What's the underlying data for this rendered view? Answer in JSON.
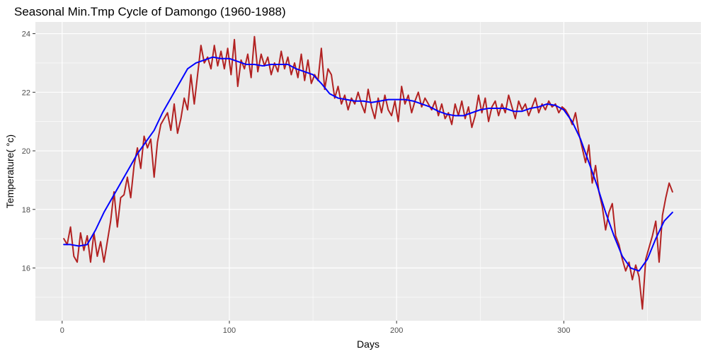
{
  "chart_data": {
    "type": "line",
    "title": "Seasonal Min.Tmp Cycle of Damongo (1960-1988)",
    "xlabel": "Days",
    "ylabel": "Temperature( °c)",
    "xlim": [
      -16,
      382
    ],
    "ylim": [
      14.2,
      24.4
    ],
    "x_ticks": [
      0,
      100,
      200,
      300
    ],
    "y_ticks": [
      16,
      18,
      20,
      22,
      24
    ],
    "grid": true,
    "legend": "none",
    "colors": {
      "panel": "#ebebeb",
      "grid": "#ffffff",
      "raw": "#b22222",
      "smooth": "#0000ff"
    },
    "series": [
      {
        "color": "#b22222",
        "x": [
          1,
          3,
          5,
          7,
          9,
          11,
          13,
          15,
          17,
          19,
          21,
          23,
          25,
          27,
          29,
          31,
          33,
          35,
          37,
          39,
          41,
          43,
          45,
          47,
          49,
          51,
          53,
          55,
          57,
          59,
          61,
          63,
          65,
          67,
          69,
          71,
          73,
          75,
          77,
          79,
          81,
          83,
          85,
          87,
          89,
          91,
          93,
          95,
          97,
          99,
          101,
          103,
          105,
          107,
          109,
          111,
          113,
          115,
          117,
          119,
          121,
          123,
          125,
          127,
          129,
          131,
          133,
          135,
          137,
          139,
          141,
          143,
          145,
          147,
          149,
          151,
          153,
          155,
          157,
          159,
          161,
          163,
          165,
          167,
          169,
          171,
          173,
          175,
          177,
          179,
          181,
          183,
          185,
          187,
          189,
          191,
          193,
          195,
          197,
          199,
          201,
          203,
          205,
          207,
          209,
          211,
          213,
          215,
          217,
          219,
          221,
          223,
          225,
          227,
          229,
          231,
          233,
          235,
          237,
          239,
          241,
          243,
          245,
          247,
          249,
          251,
          253,
          255,
          257,
          259,
          261,
          263,
          265,
          267,
          269,
          271,
          273,
          275,
          277,
          279,
          281,
          283,
          285,
          287,
          289,
          291,
          293,
          295,
          297,
          299,
          301,
          303,
          305,
          307,
          309,
          311,
          313,
          315,
          317,
          319,
          321,
          323,
          325,
          327,
          329,
          331,
          333,
          335,
          337,
          339,
          341,
          343,
          345,
          347,
          349,
          351,
          353,
          355,
          357,
          359,
          361,
          363,
          365
        ],
        "y": [
          17.0,
          16.8,
          17.4,
          16.4,
          16.2,
          17.2,
          16.6,
          17.1,
          16.2,
          17.2,
          16.4,
          16.9,
          16.2,
          16.9,
          17.6,
          18.6,
          17.4,
          18.4,
          18.5,
          19.1,
          18.4,
          19.5,
          20.1,
          19.4,
          20.5,
          20.1,
          20.4,
          19.1,
          20.3,
          20.9,
          21.1,
          21.3,
          20.7,
          21.6,
          20.6,
          21.1,
          21.8,
          21.4,
          22.6,
          21.6,
          22.6,
          23.6,
          23.0,
          23.2,
          22.8,
          23.6,
          22.9,
          23.4,
          22.8,
          23.5,
          22.6,
          23.8,
          22.2,
          23.1,
          22.8,
          23.3,
          22.5,
          23.9,
          22.7,
          23.3,
          22.9,
          23.2,
          22.6,
          23.0,
          22.7,
          23.4,
          22.8,
          23.2,
          22.6,
          23.0,
          22.5,
          23.3,
          22.4,
          23.1,
          22.3,
          22.6,
          22.4,
          23.5,
          22.1,
          22.8,
          22.6,
          21.8,
          22.2,
          21.6,
          21.9,
          21.4,
          21.8,
          21.6,
          22.0,
          21.6,
          21.3,
          22.1,
          21.5,
          21.1,
          21.8,
          21.3,
          21.9,
          21.4,
          21.2,
          21.7,
          21.0,
          22.2,
          21.6,
          21.9,
          21.3,
          21.7,
          22.0,
          21.5,
          21.8,
          21.6,
          21.4,
          21.7,
          21.2,
          21.6,
          21.1,
          21.3,
          20.9,
          21.6,
          21.2,
          21.7,
          21.1,
          21.5,
          20.8,
          21.2,
          21.9,
          21.3,
          21.8,
          21.0,
          21.5,
          21.7,
          21.2,
          21.6,
          21.3,
          21.9,
          21.5,
          21.1,
          21.7,
          21.4,
          21.6,
          21.2,
          21.5,
          21.8,
          21.3,
          21.6,
          21.4,
          21.7,
          21.5,
          21.6,
          21.3,
          21.5,
          21.4,
          21.2,
          20.9,
          21.3,
          20.6,
          20.1,
          19.6,
          20.2,
          18.9,
          19.5,
          18.6,
          18.1,
          17.3,
          17.9,
          18.2,
          17.1,
          16.8,
          16.3,
          15.9,
          16.2,
          15.6,
          16.1,
          15.7,
          14.6,
          16.3,
          16.7,
          17.1,
          17.6,
          16.2,
          17.8,
          18.4,
          18.9,
          18.6
        ]
      },
      {
        "color": "#0000ff",
        "x": [
          1,
          5,
          10,
          15,
          20,
          25,
          30,
          35,
          40,
          45,
          50,
          55,
          60,
          65,
          70,
          75,
          80,
          85,
          90,
          95,
          100,
          105,
          110,
          115,
          120,
          125,
          130,
          135,
          140,
          145,
          150,
          155,
          160,
          165,
          170,
          175,
          180,
          185,
          190,
          195,
          200,
          205,
          210,
          215,
          220,
          225,
          230,
          235,
          240,
          245,
          250,
          255,
          260,
          265,
          270,
          275,
          280,
          285,
          290,
          295,
          300,
          305,
          310,
          315,
          320,
          325,
          330,
          335,
          340,
          345,
          350,
          355,
          360,
          365
        ],
        "y": [
          16.8,
          16.8,
          16.75,
          16.8,
          17.3,
          17.9,
          18.4,
          18.9,
          19.4,
          19.9,
          20.3,
          20.7,
          21.3,
          21.8,
          22.3,
          22.8,
          23.0,
          23.1,
          23.2,
          23.15,
          23.15,
          23.05,
          22.95,
          22.95,
          22.9,
          22.95,
          22.95,
          22.95,
          22.8,
          22.7,
          22.6,
          22.3,
          21.95,
          21.8,
          21.75,
          21.7,
          21.7,
          21.65,
          21.7,
          21.75,
          21.75,
          21.75,
          21.7,
          21.6,
          21.5,
          21.35,
          21.25,
          21.2,
          21.2,
          21.3,
          21.4,
          21.45,
          21.45,
          21.45,
          21.35,
          21.35,
          21.45,
          21.5,
          21.6,
          21.55,
          21.4,
          21.0,
          20.4,
          19.6,
          18.8,
          17.9,
          17.1,
          16.4,
          16.0,
          15.9,
          16.3,
          17.0,
          17.6,
          17.9
        ]
      }
    ]
  }
}
